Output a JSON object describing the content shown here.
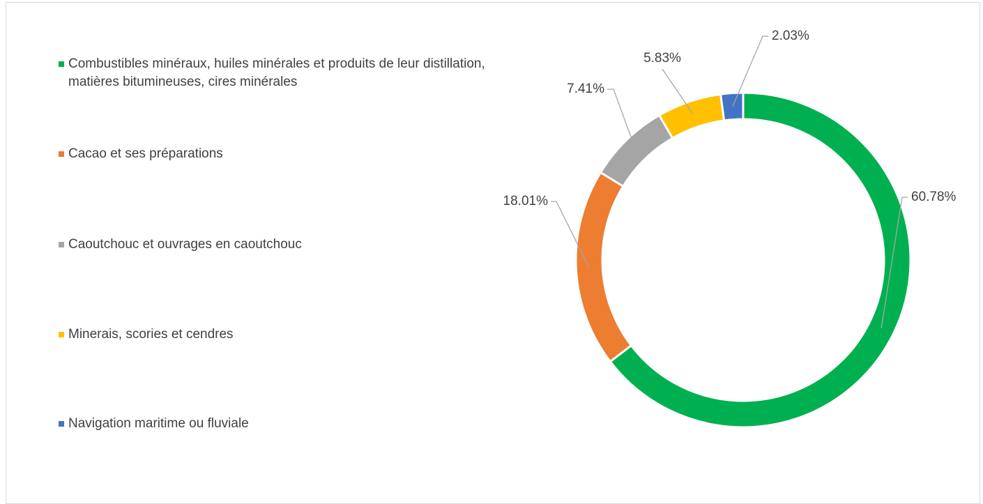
{
  "chart_data": {
    "type": "donut",
    "categories": [
      "Combustibles minéraux, huiles minérales et produits de leur distillation, matières bitumineuses, cires minérales",
      "Cacao et ses préparations",
      "Caoutchouc et ouvrages en caoutchouc",
      "Minerais, scories et cendres",
      "Navigation maritime ou fluviale"
    ],
    "values": [
      60.78,
      18.01,
      7.41,
      5.83,
      2.03
    ],
    "value_labels": [
      "60.78%",
      "18.01%",
      "7.41%",
      "5.83%",
      "2.03%"
    ],
    "colors": [
      "#00b050",
      "#ed7d31",
      "#a5a5a5",
      "#ffc000",
      "#4472c4"
    ],
    "legend": "left"
  }
}
